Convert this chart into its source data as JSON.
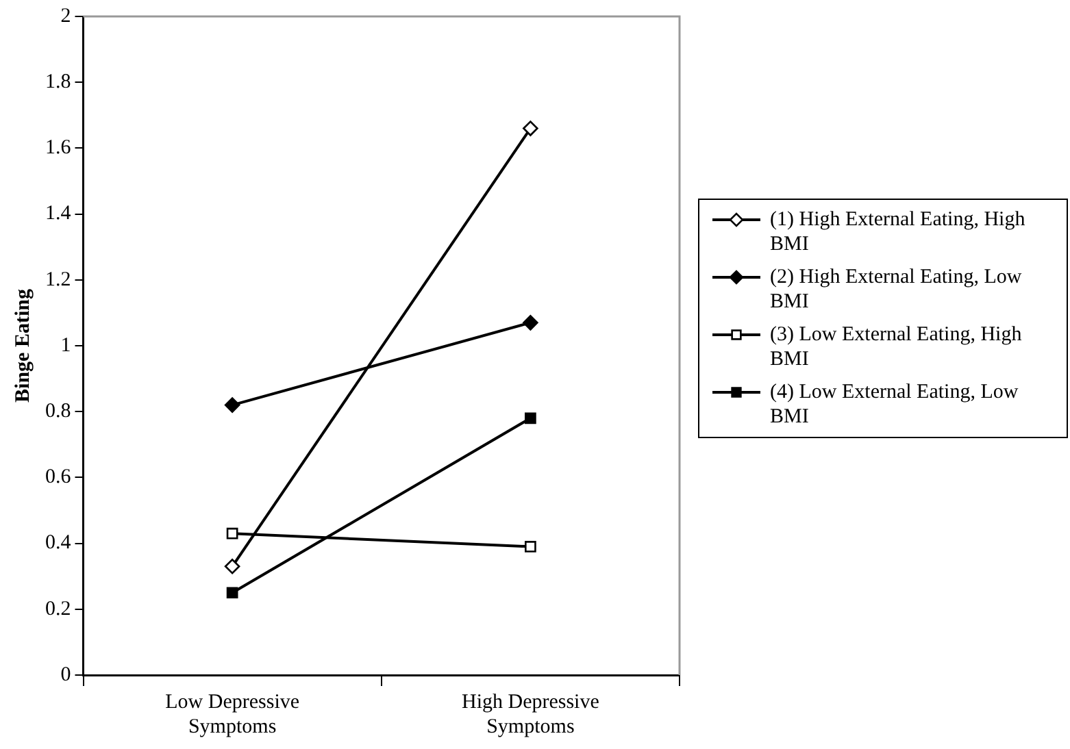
{
  "chart_data": {
    "type": "line",
    "ylabel": "Binge Eating",
    "categories": [
      "Low Depressive Symptoms",
      "High Depressive Symptoms"
    ],
    "series": [
      {
        "name": "(1) High External Eating, High BMI",
        "color": "#000000",
        "colors": [
          "#ffffff",
          "#ffffff"
        ],
        "marker": "diamond",
        "values": [
          0.33,
          1.66
        ]
      },
      {
        "name": "(2) High External Eating, Low BMI",
        "color": "#000000",
        "marker": "diamond",
        "values": [
          0.82,
          1.07
        ]
      },
      {
        "name": "(3) Low External Eating, High BMI",
        "color": "#000000",
        "colors": [
          "#ffffff",
          "#ffffff"
        ],
        "marker": "square",
        "values": [
          0.43,
          0.39
        ]
      },
      {
        "name": "(4) Low External Eating, Low BMI",
        "color": "#000000",
        "marker": "square",
        "values": [
          0.25,
          0.78
        ]
      }
    ],
    "ylim": [
      0,
      2
    ],
    "yticks": [
      0,
      0.2,
      0.4,
      0.6,
      0.8,
      1,
      1.2,
      1.4,
      1.6,
      1.8,
      2
    ],
    "grid": false,
    "legend": "right",
    "line_style": "solid"
  }
}
